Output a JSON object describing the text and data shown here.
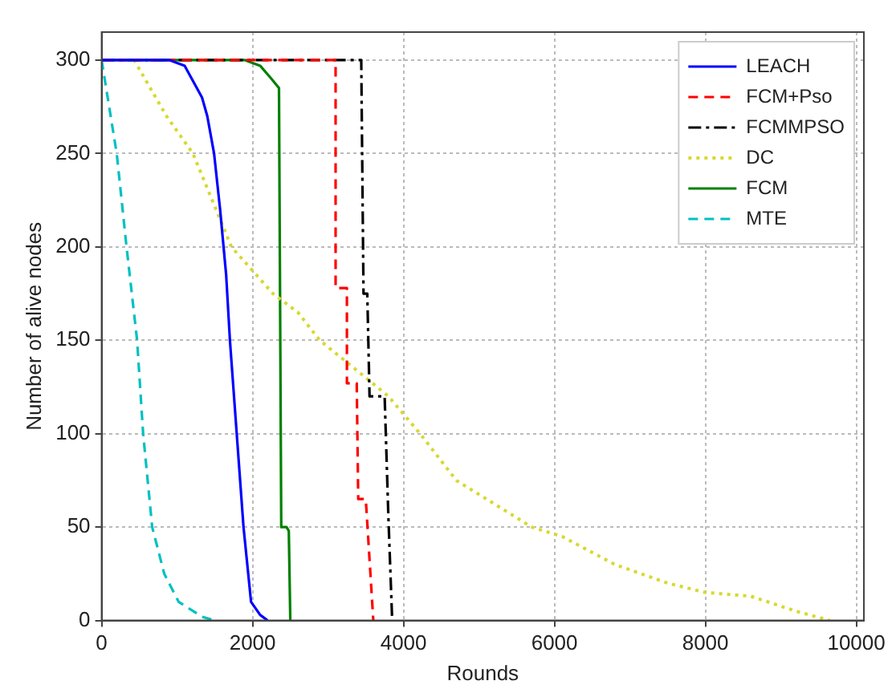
{
  "chart_data": {
    "type": "line",
    "xlabel": "Rounds",
    "ylabel": "Number of alive nodes",
    "xlim": [
      0,
      10100
    ],
    "ylim": [
      0,
      315
    ],
    "xticks": [
      0,
      2000,
      4000,
      6000,
      8000,
      10000
    ],
    "yticks": [
      0,
      50,
      100,
      150,
      200,
      250,
      300
    ],
    "grid": true,
    "legend": "top right",
    "marker": "none",
    "series": [
      {
        "name": "LEACH",
        "color": "#0000ff",
        "line_style": "solid",
        "x": [
          0,
          900,
          1100,
          1330,
          1400,
          1490,
          1570,
          1650,
          1700,
          1790,
          1880,
          1980,
          2100,
          2200
        ],
        "values": [
          300,
          300,
          297,
          280,
          270,
          250,
          220,
          185,
          150,
          100,
          50,
          10,
          3,
          0
        ]
      },
      {
        "name": "FCM+Pso",
        "color": "#ff0000",
        "line_style": "dashed",
        "x": [
          0,
          3100,
          3100,
          3250,
          3250,
          3380,
          3400,
          3500,
          3600
        ],
        "values": [
          300,
          300,
          178,
          178,
          127,
          127,
          65,
          65,
          0
        ]
      },
      {
        "name": "FCMMPSO",
        "color": "#000000",
        "line_style": "dashdot",
        "x": [
          0,
          3440,
          3470,
          3520,
          3550,
          3750,
          3800,
          3850
        ],
        "values": [
          300,
          300,
          175,
          175,
          120,
          120,
          55,
          0
        ]
      },
      {
        "name": "DC",
        "color": "#d8d830",
        "line_style": "dotted",
        "x": [
          0,
          430,
          860,
          1210,
          1720,
          2270,
          2600,
          2890,
          3500,
          3800,
          4220,
          4700,
          5100,
          5700,
          6100,
          6800,
          7500,
          8000,
          8600,
          9200,
          9650
        ],
        "values": [
          300,
          300,
          270,
          250,
          200,
          175,
          165,
          150,
          130,
          120,
          100,
          75,
          65,
          50,
          45,
          30,
          20,
          15,
          13,
          5,
          0
        ]
      },
      {
        "name": "FCM",
        "color": "#008000",
        "line_style": "solid",
        "x": [
          0,
          1900,
          2100,
          2250,
          2350,
          2380,
          2450,
          2480,
          2500
        ],
        "values": [
          300,
          300,
          297,
          290,
          285,
          50,
          50,
          48,
          0
        ]
      },
      {
        "name": "MTE",
        "color": "#00c0c0",
        "line_style": "dashed",
        "x": [
          0,
          200,
          330,
          470,
          550,
          670,
          830,
          1020,
          1330,
          1500
        ],
        "values": [
          300,
          250,
          200,
          150,
          100,
          50,
          25,
          10,
          2,
          0
        ]
      }
    ]
  }
}
